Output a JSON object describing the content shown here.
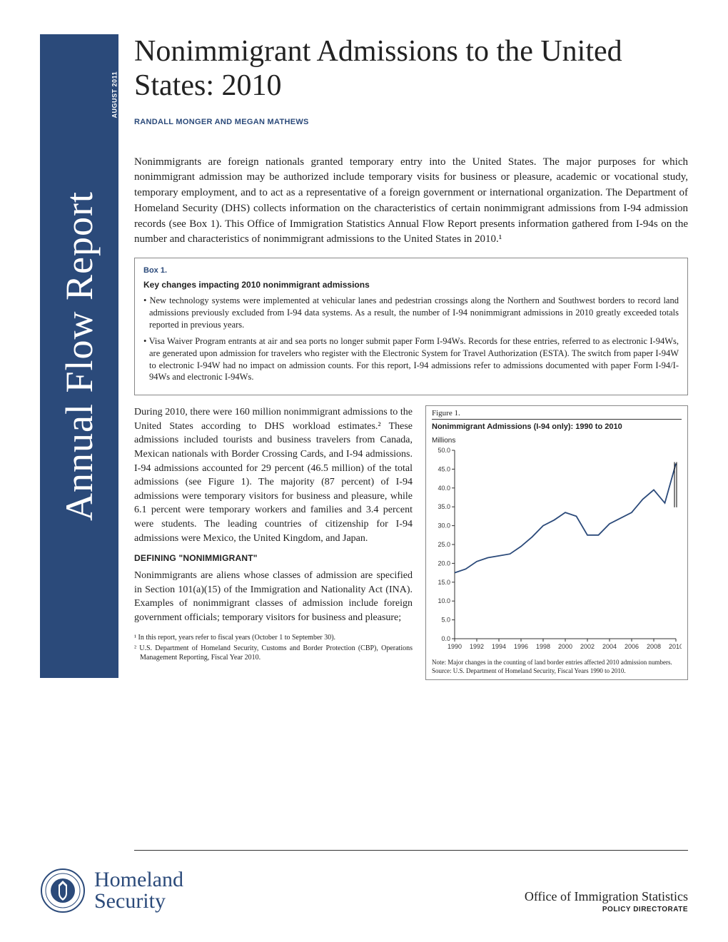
{
  "sidebar": {
    "title": "Annual Flow Report",
    "date": "AUGUST 2011"
  },
  "title": "Nonimmigrant Admissions to the United States: 2010",
  "authors": "RANDALL MONGER AND MEGAN MATHEWS",
  "intro": "Nonimmigrants are foreign nationals granted temporary entry into the United States. The major purposes for which nonimmigrant admission may be authorized include temporary visits for business or pleasure, academic or vocational study, temporary employment, and to act as a representative of a foreign government or international organization. The Department of Homeland Security (DHS) collects information on the characteristics of certain nonimmigrant admissions from I-94 admission records (see Box 1). This Office of Immigration Statistics Annual Flow Report presents information gathered from I-94s on the number and characteristics of nonimmigrant admissions to the United States in 2010.¹",
  "box": {
    "label": "Box 1.",
    "title": "Key changes impacting 2010 nonimmigrant admissions",
    "items": [
      "New technology systems were implemented at vehicular lanes and pedestrian crossings along the Northern and Southwest borders to record land admissions previously excluded from I-94 data systems. As a result, the number of I-94 nonimmigrant admissions in 2010 greatly exceeded totals reported in previous years.",
      "Visa Waiver Program entrants at air and sea ports no longer submit paper Form I-94Ws. Records for these entries, referred to as electronic I-94Ws, are generated upon admission for travelers who register with the Electronic System for Travel Authorization (ESTA). The switch from paper I-94W to electronic I-94W had no impact on admission counts.  For this report, I-94 admissions refer to admissions documented with paper Form I-94/I-94Ws and electronic I-94Ws."
    ]
  },
  "body": {
    "p1": "During 2010, there were 160 million nonimmigrant admissions to the United States according to DHS workload estimates.² These admissions included tourists and business travelers from Canada, Mexican nationals with Border Crossing Cards, and I-94 admissions. I-94 admissions accounted for 29 percent (46.5 million) of the total admissions (see Figure 1). The majority (87 percent) of I-94 admissions were temporary visitors for business and pleasure, while 6.1 percent were temporary workers and families and 3.4 percent were students. The leading countries of citizenship for I-94 admissions were Mexico, the United Kingdom, and Japan.",
    "h1": "DEFINING \"NONIMMIGRANT\"",
    "p2": "Nonimmigrants are aliens whose classes of admission are specified in Section 101(a)(15) of the Immigration and Nationality Act (INA). Examples of nonimmigrant classes of admission include foreign government officials; temporary visitors for business and pleasure;"
  },
  "footnotes": {
    "f1": "¹ In this report, years refer to fiscal years (October 1 to September 30).",
    "f2": "² U.S. Department of Homeland Security, Customs and Border Protection (CBP), Operations Management Reporting, Fiscal Year 2010."
  },
  "figure": {
    "label": "Figure 1.",
    "title": "Nonimmigrant Admissions (I-94 only): 1990 to 2010",
    "units": "Millions",
    "type": "line",
    "xlim": [
      1990,
      2010
    ],
    "ylim": [
      0,
      50
    ],
    "ytick_step": 5,
    "xtick_step": 2,
    "line_color": "#2b4a7a",
    "line_width": 1.8,
    "background_color": "#ffffff",
    "axis_color": "#333333",
    "tick_fontsize": 9,
    "years": [
      1990,
      1991,
      1992,
      1993,
      1994,
      1995,
      1996,
      1997,
      1998,
      1999,
      2000,
      2001,
      2002,
      2003,
      2004,
      2005,
      2006,
      2007,
      2008,
      2009,
      2010
    ],
    "values": [
      17.5,
      18.5,
      20.5,
      21.5,
      22.0,
      22.5,
      24.5,
      27.0,
      30.0,
      31.5,
      33.5,
      32.5,
      27.5,
      27.5,
      30.5,
      32.0,
      33.5,
      37.0,
      39.5,
      36.0,
      46.5
    ],
    "note": "Note: Major changes in the counting of land border entries affected 2010 admission numbers.",
    "source": "Source: U.S. Department of Homeland Security, Fiscal Years 1990 to 2010."
  },
  "footer": {
    "dept_line1": "Homeland",
    "dept_line2": "Security",
    "seal_color": "#2b4a7a",
    "office": "Office of Immigration Statistics",
    "directorate": "POLICY DIRECTORATE"
  }
}
